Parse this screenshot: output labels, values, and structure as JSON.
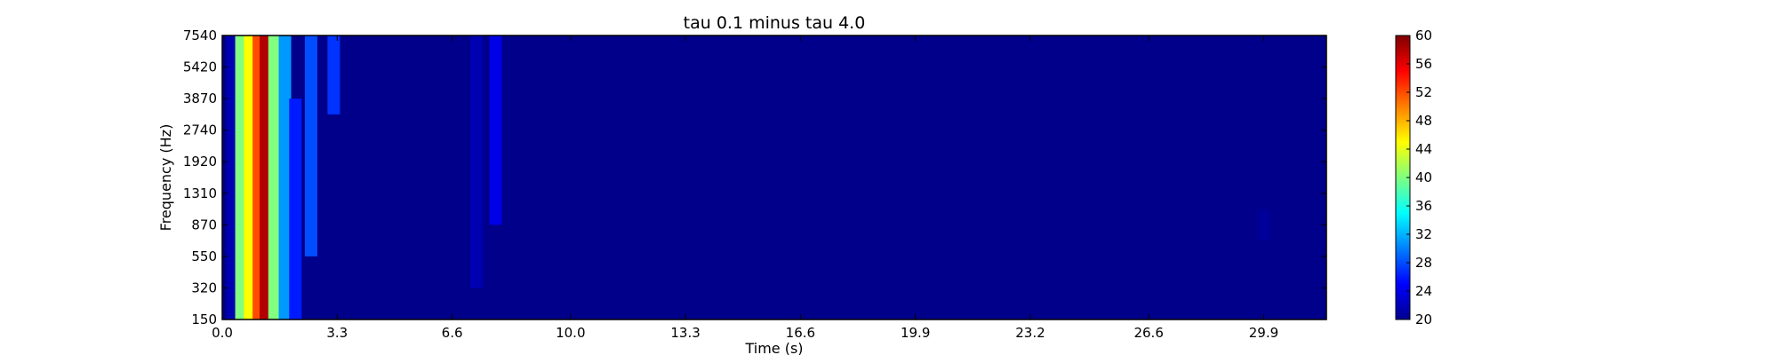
{
  "chart_data": {
    "type": "heatmap",
    "title": "tau 0.1 minus tau 4.0",
    "xlabel": "Time (s)",
    "ylabel": "Frequency (Hz)",
    "x_ticks": [
      "0.0",
      "3.3",
      "6.6",
      "10.0",
      "13.3",
      "16.6",
      "19.9",
      "23.2",
      "26.6",
      "29.9"
    ],
    "x_tick_values": [
      0.0,
      3.3,
      6.6,
      10.0,
      13.3,
      16.6,
      19.9,
      23.2,
      26.6,
      29.9
    ],
    "xlim": [
      0.0,
      31.7
    ],
    "y_ticks": [
      "150",
      "320",
      "550",
      "870",
      "1310",
      "1920",
      "2740",
      "3870",
      "5420",
      "7540"
    ],
    "colorbar": {
      "ticks": [
        "20",
        "24",
        "28",
        "32",
        "36",
        "40",
        "44",
        "48",
        "52",
        "56",
        "60"
      ],
      "range": [
        20,
        60
      ],
      "colormap": "jet"
    },
    "background_value": 20,
    "features": [
      {
        "t": 0.3,
        "value": 22,
        "f_min_index": 0,
        "f_max_index": 9
      },
      {
        "t": 0.55,
        "value": 40,
        "f_min_index": 0,
        "f_max_index": 9
      },
      {
        "t": 0.8,
        "value": 45,
        "f_min_index": 0,
        "f_max_index": 9
      },
      {
        "t": 1.05,
        "value": 52,
        "f_min_index": 0,
        "f_max_index": 9
      },
      {
        "t": 1.25,
        "value": 58,
        "f_min_index": 0,
        "f_max_index": 9
      },
      {
        "t": 1.5,
        "value": 40,
        "f_min_index": 0,
        "f_max_index": 9
      },
      {
        "t": 1.8,
        "value": 31,
        "f_min_index": 0,
        "f_max_index": 9
      },
      {
        "t": 2.1,
        "value": 26,
        "f_min_index": 0,
        "f_max_index": 7
      },
      {
        "t": 2.55,
        "value": 28,
        "f_min_index": 2,
        "f_max_index": 9
      },
      {
        "t": 3.2,
        "value": 27,
        "f_min_index": 6.5,
        "f_max_index": 9
      },
      {
        "t": 7.3,
        "value": 22,
        "f_min_index": 1,
        "f_max_index": 9
      },
      {
        "t": 7.85,
        "value": 24,
        "f_min_index": 3,
        "f_max_index": 9
      },
      {
        "t": 29.9,
        "value": 21,
        "f_min_index": 2.5,
        "f_max_index": 3.5
      }
    ]
  }
}
